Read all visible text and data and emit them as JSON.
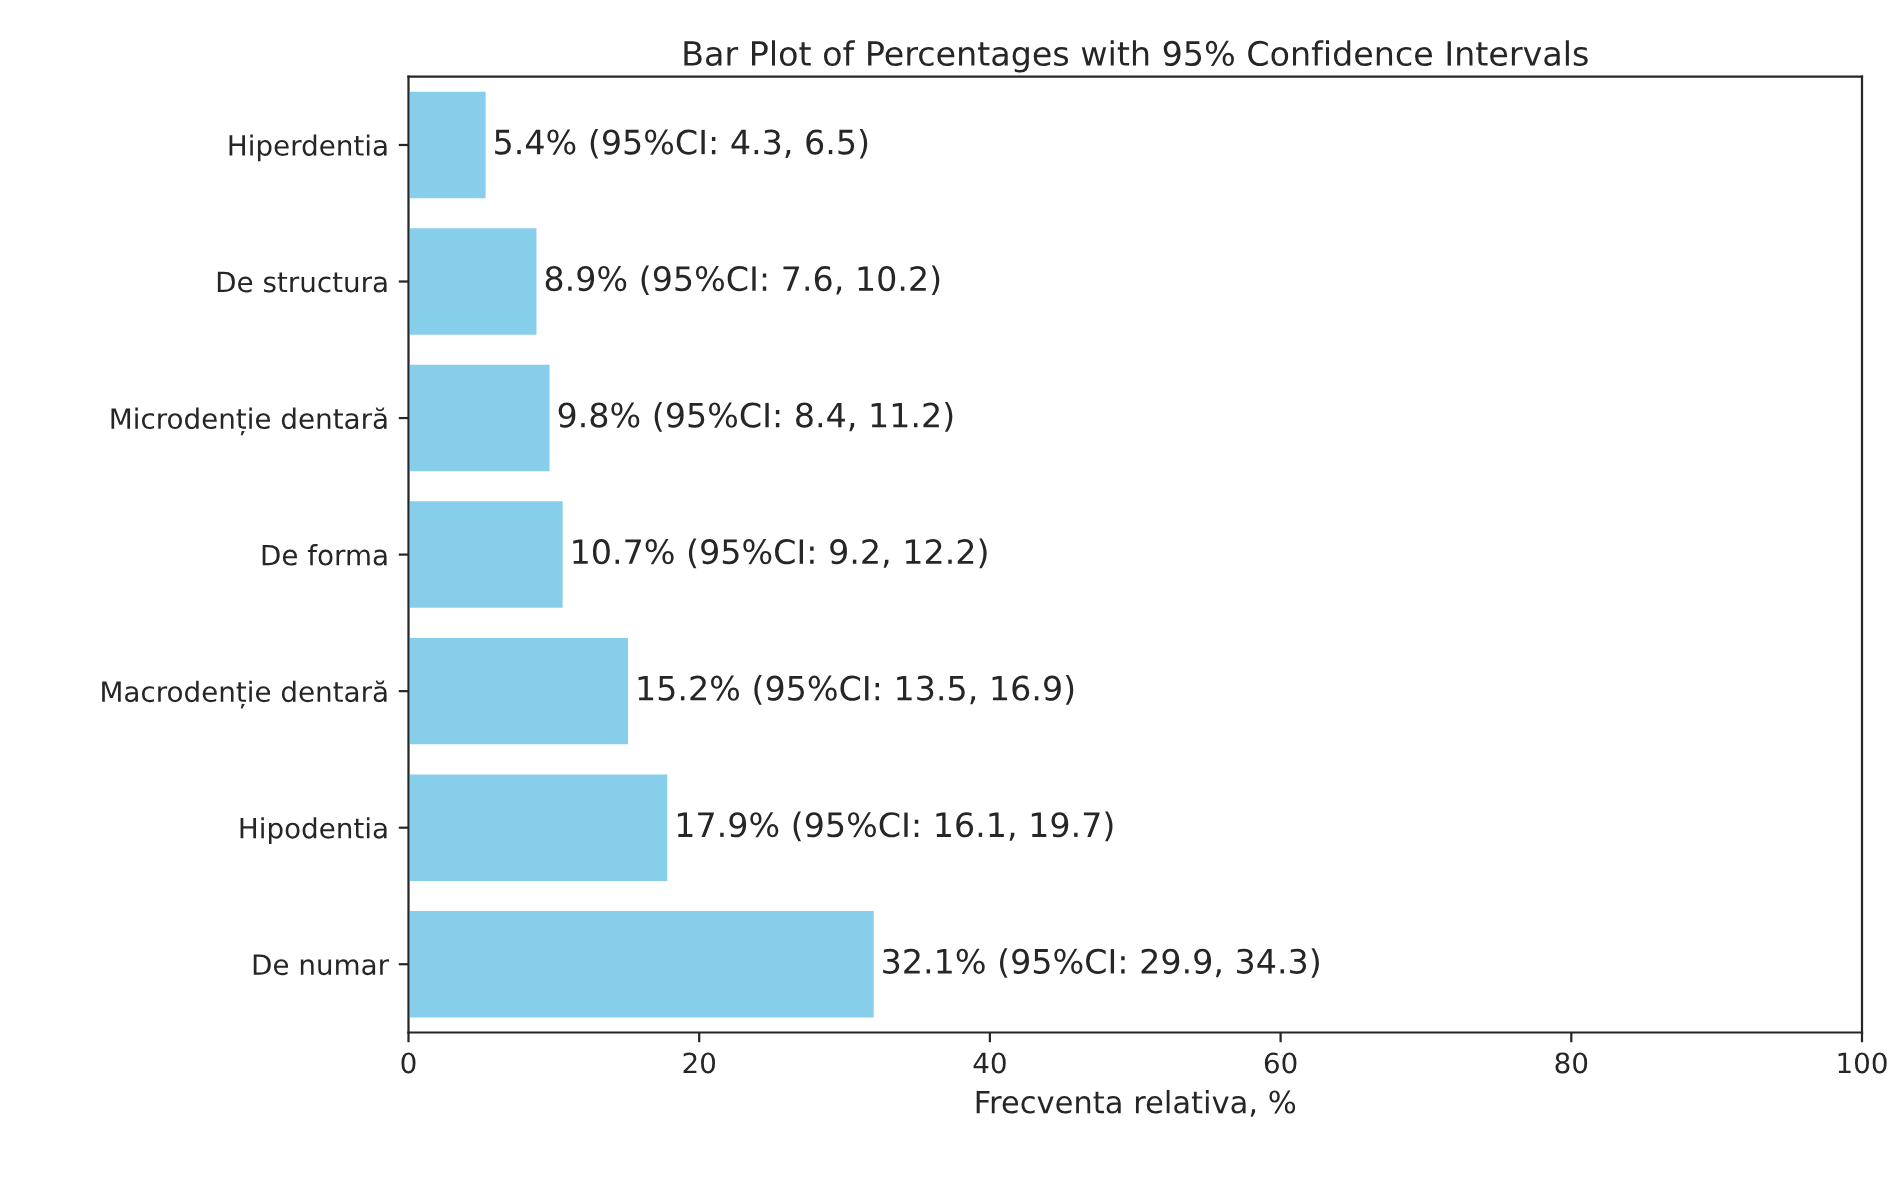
{
  "chart_data": {
    "type": "bar",
    "orientation": "horizontal",
    "title": "Bar Plot of Percentages with 95% Confidence Intervals",
    "xlabel": "Frecventa relativa, %",
    "categories": [
      "Hiperdentia",
      "De structura",
      "Microdenție dentară",
      "De forma",
      "Macrodenție dentară",
      "Hipodentia",
      "De numar"
    ],
    "values": [
      5.4,
      8.9,
      9.8,
      10.7,
      15.2,
      17.9,
      32.1
    ],
    "value_labels": [
      "5.4% (95%CI: 4.3, 6.5)",
      "8.9% (95%CI: 7.6, 10.2)",
      "9.8% (95%CI: 8.4, 11.2)",
      "10.7% (95%CI: 9.2, 12.2)",
      "15.2% (95%CI: 13.5, 16.9)",
      "17.9% (95%CI: 16.1, 19.7)",
      "32.1% (95%CI: 29.9, 34.3)"
    ],
    "color": "#87ceeb",
    "xlim": [
      0,
      100
    ],
    "xticks": [
      0,
      20,
      40,
      60,
      80,
      100
    ],
    "grid": false,
    "legend": false
  }
}
